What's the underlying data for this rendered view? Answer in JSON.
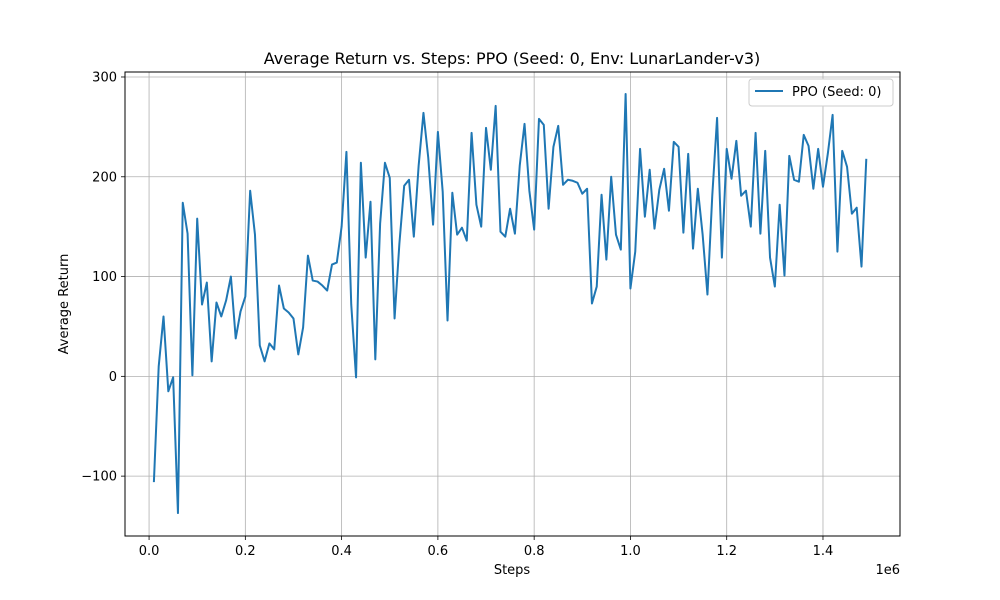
{
  "chart_data": {
    "type": "line",
    "title": "Average Return vs. Steps: PPO (Seed: 0, Env: LunarLander-v3)",
    "xlabel": "Steps",
    "ylabel": "Average Return",
    "x_offset_label": "1e6",
    "xlim": [
      -50000,
      1560000
    ],
    "ylim": [
      -160,
      305
    ],
    "xticks": [
      0,
      200000,
      400000,
      600000,
      800000,
      1000000,
      1200000,
      1400000
    ],
    "xtick_labels": [
      "0.0",
      "0.2",
      "0.4",
      "0.6",
      "0.8",
      "1.0",
      "1.2",
      "1.4"
    ],
    "yticks": [
      -100,
      0,
      100,
      200,
      300
    ],
    "ytick_labels": [
      "−100",
      "0",
      "100",
      "200",
      "300"
    ],
    "grid": true,
    "legend_position": "upper-right",
    "series": [
      {
        "name": "PPO (Seed: 0)",
        "color": "#1f77b4",
        "x": [
          10000,
          20000,
          30000,
          40000,
          50000,
          60000,
          70000,
          80000,
          90000,
          100000,
          110000,
          120000,
          130000,
          140000,
          150000,
          160000,
          170000,
          180000,
          190000,
          200000,
          210000,
          220000,
          230000,
          240000,
          250000,
          260000,
          270000,
          280000,
          290000,
          300000,
          310000,
          320000,
          330000,
          340000,
          350000,
          360000,
          370000,
          380000,
          390000,
          400000,
          410000,
          420000,
          430000,
          440000,
          450000,
          460000,
          470000,
          480000,
          490000,
          500000,
          510000,
          520000,
          530000,
          540000,
          550000,
          560000,
          570000,
          580000,
          590000,
          600000,
          610000,
          620000,
          630000,
          640000,
          650000,
          660000,
          670000,
          680000,
          690000,
          700000,
          710000,
          720000,
          730000,
          740000,
          750000,
          760000,
          770000,
          780000,
          790000,
          800000,
          810000,
          820000,
          830000,
          840000,
          850000,
          860000,
          870000,
          880000,
          890000,
          900000,
          910000,
          920000,
          930000,
          940000,
          950000,
          960000,
          970000,
          980000,
          990000,
          1000000,
          1010000,
          1020000,
          1030000,
          1040000,
          1050000,
          1060000,
          1070000,
          1080000,
          1090000,
          1100000,
          1110000,
          1120000,
          1130000,
          1140000,
          1150000,
          1160000,
          1170000,
          1180000,
          1190000,
          1200000,
          1210000,
          1220000,
          1230000,
          1240000,
          1250000,
          1260000,
          1270000,
          1280000,
          1290000,
          1300000,
          1310000,
          1320000,
          1330000,
          1340000,
          1350000,
          1360000,
          1370000,
          1380000,
          1390000,
          1400000,
          1410000,
          1420000,
          1430000,
          1440000,
          1450000,
          1460000,
          1470000,
          1480000,
          1490000
        ],
        "y": [
          -106,
          10,
          60,
          -15,
          -1,
          -137,
          174,
          143,
          1,
          158,
          72,
          94,
          15,
          74,
          60,
          76,
          100,
          38,
          65,
          80,
          186,
          142,
          31,
          15,
          33,
          27,
          91,
          68,
          64,
          58,
          22,
          49,
          121,
          96,
          95,
          91,
          86,
          112,
          114,
          150,
          225,
          72,
          -1,
          214,
          119,
          175,
          17,
          153,
          214,
          199,
          58,
          133,
          191,
          197,
          140,
          211,
          264,
          219,
          152,
          245,
          185,
          56,
          184,
          142,
          149,
          136,
          244,
          172,
          150,
          249,
          207,
          271,
          145,
          140,
          168,
          143,
          211,
          253,
          186,
          147,
          258,
          252,
          168,
          230,
          251,
          192,
          197,
          196,
          194,
          183,
          188,
          73,
          90,
          182,
          117,
          200,
          142,
          127,
          283,
          88,
          125,
          228,
          160,
          207,
          148,
          187,
          208,
          166,
          235,
          230,
          144,
          223,
          128,
          188,
          142,
          82,
          181,
          259,
          119,
          228,
          198,
          236,
          181,
          186,
          150,
          244,
          143,
          226,
          119,
          90,
          172,
          101,
          221,
          197,
          195,
          242,
          231,
          188,
          228,
          190,
          223,
          262,
          125,
          226,
          210,
          163,
          169,
          110,
          218
        ]
      }
    ]
  }
}
